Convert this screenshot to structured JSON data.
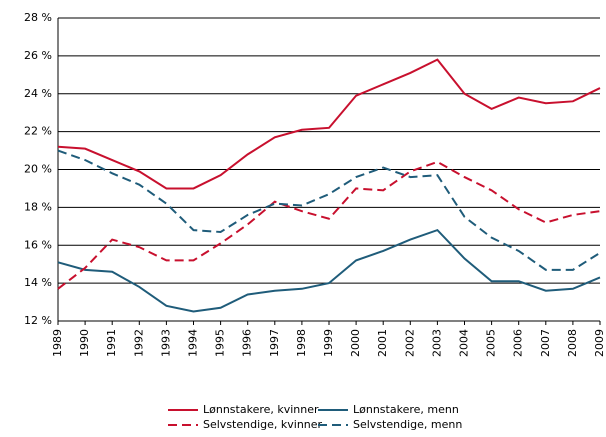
{
  "chart_data": {
    "type": "line",
    "categories": [
      "1989",
      "1990",
      "1991",
      "1992",
      "1993",
      "1994",
      "1995",
      "1996",
      "1997",
      "1998",
      "1999",
      "2000",
      "2001",
      "2002",
      "2003",
      "2004",
      "2005",
      "2006",
      "2007",
      "2008",
      "2009"
    ],
    "series": [
      {
        "name": "Lønnstakere, kvinner",
        "color": "#c8102e",
        "dashed": false,
        "values": [
          21.2,
          21.1,
          20.5,
          19.9,
          19.0,
          19.0,
          19.7,
          20.8,
          21.7,
          22.1,
          22.2,
          23.9,
          24.5,
          25.1,
          25.8,
          24.0,
          23.2,
          23.8,
          23.5,
          23.6,
          24.3
        ]
      },
      {
        "name": "Lønnstakere, menn",
        "color": "#1f5c7a",
        "dashed": false,
        "values": [
          15.1,
          14.7,
          14.6,
          13.8,
          12.8,
          12.5,
          12.7,
          13.4,
          13.6,
          13.7,
          14.0,
          15.2,
          15.7,
          16.3,
          16.8,
          15.3,
          14.1,
          14.1,
          13.6,
          13.7,
          14.3
        ]
      },
      {
        "name": "Selvstendige, kvinner",
        "color": "#c8102e",
        "dashed": true,
        "values": [
          13.7,
          14.8,
          16.3,
          15.9,
          15.2,
          15.2,
          16.1,
          17.1,
          18.3,
          17.8,
          17.4,
          19.0,
          18.9,
          19.9,
          20.4,
          19.6,
          18.9,
          17.9,
          17.2,
          17.6,
          17.8
        ]
      },
      {
        "name": "Selvstendige, menn",
        "color": "#1f5c7a",
        "dashed": true,
        "values": [
          21.0,
          20.5,
          19.8,
          19.2,
          18.2,
          16.8,
          16.7,
          17.6,
          18.2,
          18.1,
          18.7,
          19.6,
          20.1,
          19.6,
          19.7,
          17.5,
          16.4,
          15.7,
          14.7,
          14.7,
          15.6
        ]
      }
    ],
    "ylim": [
      12,
      28
    ],
    "yticks": [
      {
        "value": 12,
        "label": "12 %"
      },
      {
        "value": 14,
        "label": "14 %"
      },
      {
        "value": 16,
        "label": "16 %"
      },
      {
        "value": 18,
        "label": "18 %"
      },
      {
        "value": 20,
        "label": "20 %"
      },
      {
        "value": 22,
        "label": "22 %"
      },
      {
        "value": 24,
        "label": "24 %"
      },
      {
        "value": 26,
        "label": "26 %"
      },
      {
        "value": 28,
        "label": "28 %"
      }
    ],
    "grid": true,
    "legend": "bottom"
  }
}
